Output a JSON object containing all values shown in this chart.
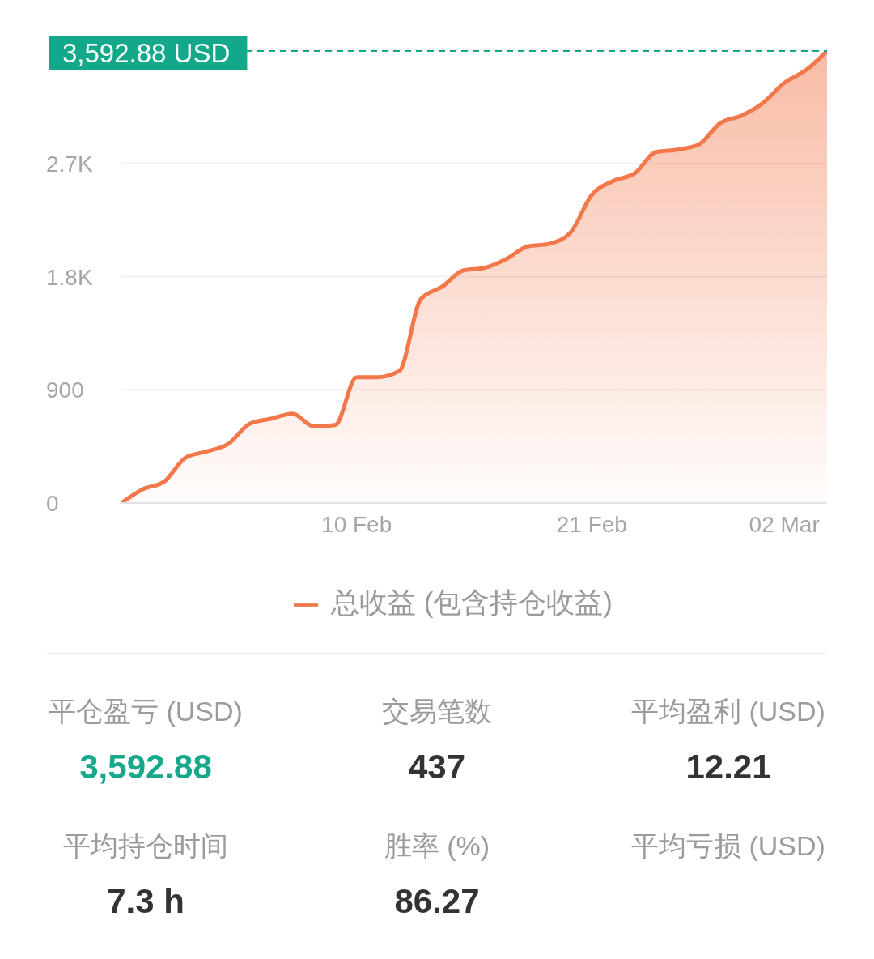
{
  "chart_data": [
    {
      "type": "area",
      "x": [
        "--01-30",
        "--01-31",
        "--02-01",
        "--02-02",
        "--02-03",
        "--02-04",
        "--02-05",
        "--02-06",
        "--02-07",
        "--02-08",
        "--02-09",
        "--02-10",
        "--02-11",
        "--02-12",
        "--02-13",
        "--02-14",
        "--02-15",
        "--02-16",
        "--02-17",
        "--02-18",
        "--02-19",
        "--02-20",
        "--02-21",
        "--02-22",
        "--02-23",
        "--02-24",
        "--02-25",
        "--02-26",
        "--02-27",
        "--02-28",
        "--03-01",
        "--03-02",
        "--03-03",
        "--03-04"
      ],
      "series": [
        {
          "name": "总收益 (包含持仓收益)",
          "color": "#f2784b",
          "values": [
            0,
            110,
            170,
            360,
            410,
            470,
            630,
            670,
            710,
            610,
            620,
            1000,
            1000,
            1050,
            1620,
            1720,
            1850,
            1870,
            1940,
            2040,
            2060,
            2150,
            2450,
            2560,
            2620,
            2790,
            2810,
            2850,
            3020,
            3080,
            3180,
            3340,
            3440,
            3592.88
          ]
        }
      ],
      "xlim": [
        "--01-30",
        "--03-04"
      ],
      "xticks": [
        {
          "value": "--02-10",
          "label": "10 Feb"
        },
        {
          "value": "--02-21",
          "label": "21 Feb"
        },
        {
          "value": "--03-02",
          "label": "02 Mar"
        }
      ],
      "ylim": [
        0,
        3600
      ],
      "yticks": [
        0,
        900,
        {
          "value": 1800,
          "label": "1.8K"
        },
        {
          "value": 2700,
          "label": "2.7K"
        }
      ],
      "grid": "y",
      "legend": "bottom",
      "ref_lines": [
        {
          "axis": "y",
          "value": 3592.88,
          "label": "3,592.88 USD",
          "color": "#14a88b",
          "line_style": "dashed"
        }
      ]
    },
    {
      "type": "other",
      "categories": [
        "平仓盈亏 (USD)",
        "交易笔数",
        "平均盈利 (USD)",
        "平均持仓时间",
        "胜率 (%)",
        "平均亏损 (USD)"
      ],
      "value_labels": [
        "3,592.88",
        "437",
        "12.21",
        "7.3 h",
        "86.27",
        null
      ],
      "colors": [
        "#15a88a",
        "#333333",
        "#333333",
        "#333333",
        "#333333",
        "#333333"
      ]
    }
  ]
}
